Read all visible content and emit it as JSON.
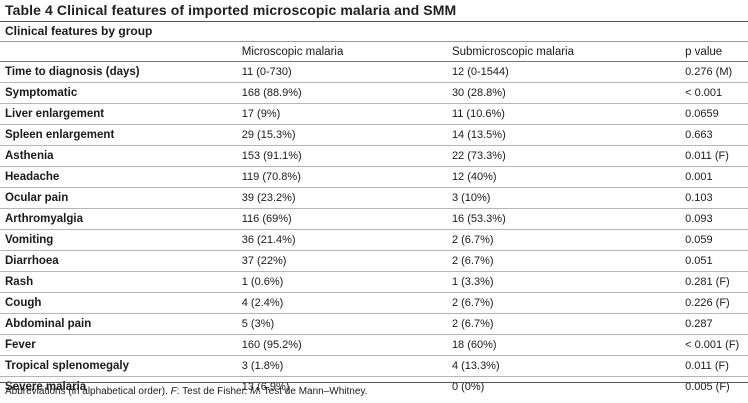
{
  "table": {
    "title": "Table 4 Clinical features of imported microscopic malaria and SMM",
    "subtitle": "Clinical features by group",
    "headers": [
      "",
      "Microscopic malaria",
      "Submicroscopic malaria",
      "p value"
    ],
    "rows": [
      {
        "feature": "Time to diagnosis (days)",
        "microscopic": "11 (0-730)",
        "submicroscopic": "12 (0-1544)",
        "p": "0.276 (M)"
      },
      {
        "feature": "Symptomatic",
        "microscopic": "168 (88.9%)",
        "submicroscopic": "30 (28.8%)",
        "p": "< 0.001"
      },
      {
        "feature": "Liver enlargement",
        "microscopic": "17 (9%)",
        "submicroscopic": "11 (10.6%)",
        "p": "0.0659"
      },
      {
        "feature": "Spleen enlargement",
        "microscopic": "29 (15.3%)",
        "submicroscopic": "14 (13.5%)",
        "p": "0.663"
      },
      {
        "feature": "Asthenia",
        "microscopic": "153 (91.1%)",
        "submicroscopic": "22 (73.3%)",
        "p": "0.011 (F)"
      },
      {
        "feature": "Headache",
        "microscopic": "119 (70.8%)",
        "submicroscopic": "12 (40%)",
        "p": "0.001"
      },
      {
        "feature": "Ocular pain",
        "microscopic": "39 (23.2%)",
        "submicroscopic": "3 (10%)",
        "p": "0.103"
      },
      {
        "feature": "Arthromyalgia",
        "microscopic": "116 (69%)",
        "submicroscopic": "16 (53.3%)",
        "p": "0.093"
      },
      {
        "feature": "Vomiting",
        "microscopic": "36 (21.4%)",
        "submicroscopic": "2 (6.7%)",
        "p": "0.059"
      },
      {
        "feature": "Diarrhoea",
        "microscopic": "37 (22%)",
        "submicroscopic": "2 (6.7%)",
        "p": "0.051"
      },
      {
        "feature": "Rash",
        "microscopic": "1 (0.6%)",
        "submicroscopic": "1 (3.3%)",
        "p": "0.281 (F)"
      },
      {
        "feature": "Cough",
        "microscopic": "4 (2.4%)",
        "submicroscopic": "2 (6.7%)",
        "p": "0.226 (F)"
      },
      {
        "feature": "Abdominal pain",
        "microscopic": "5 (3%)",
        "submicroscopic": "2 (6.7%)",
        "p": "0.287"
      },
      {
        "feature": "Fever",
        "microscopic": "160 (95.2%)",
        "submicroscopic": "18 (60%)",
        "p": "< 0.001 (F)"
      },
      {
        "feature": "Tropical splenomegaly",
        "microscopic": "3 (1.8%)",
        "submicroscopic": "4 (13.3%)",
        "p": "0.011 (F)"
      },
      {
        "feature": "Severe malaria",
        "microscopic": "13 (6.9%)",
        "submicroscopic": "0 (0%)",
        "p": "0.005 (F)"
      }
    ],
    "footnote": {
      "prefix": "Abbreviations (in alphabetical order). ",
      "f_key": "F",
      "f_text": ": Test de Fisher. ",
      "m_key": "M",
      "m_text": ": Test de Mann–Whitney."
    }
  }
}
